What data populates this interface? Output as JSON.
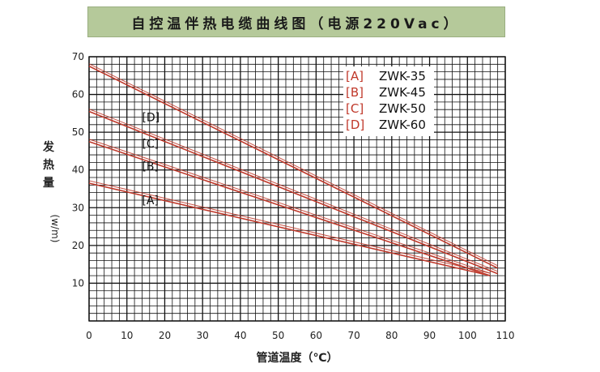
{
  "title": "自控温伴热电缆曲线图（电源220Vac）",
  "chart_data": {
    "type": "line",
    "xlabel": "管道温度（℃）",
    "ylabel_chars": [
      "发",
      "热",
      "量"
    ],
    "ylabel_unit": "(w/m)",
    "xlim": [
      0,
      110
    ],
    "ylim": [
      0,
      70
    ],
    "x_ticks": [
      "0",
      "10",
      "20",
      "30",
      "40",
      "50",
      "60",
      "70",
      "80",
      "90",
      "100",
      "110"
    ],
    "y_ticks": [
      "10",
      "20",
      "30",
      "40",
      "50",
      "60",
      "70"
    ],
    "grid": true,
    "legend_position": "top-right",
    "series": [
      {
        "key": "[A]",
        "name": "ZWK-35",
        "x": [
          0,
          106
        ],
        "y": [
          36.5,
          12.0
        ]
      },
      {
        "key": "[B]",
        "name": "ZWK-45",
        "x": [
          0,
          106
        ],
        "y": [
          47.5,
          12.0
        ]
      },
      {
        "key": "[C]",
        "name": "ZWK-50",
        "x": [
          0,
          108
        ],
        "y": [
          55.5,
          12.5
        ]
      },
      {
        "key": "[D]",
        "name": "ZWK-60",
        "x": [
          0,
          108
        ],
        "y": [
          67.5,
          14.0
        ]
      }
    ],
    "curve_labels": [
      {
        "text": "[A]",
        "x": 14,
        "y": 32
      },
      {
        "text": "[B]",
        "x": 14,
        "y": 41
      },
      {
        "text": "[C]",
        "x": 14,
        "y": 47
      },
      {
        "text": "[D]",
        "x": 14,
        "y": 54
      }
    ],
    "colors": {
      "curve": "#c0392b",
      "grid": "#111111",
      "legend_key": "#c0392b"
    }
  }
}
